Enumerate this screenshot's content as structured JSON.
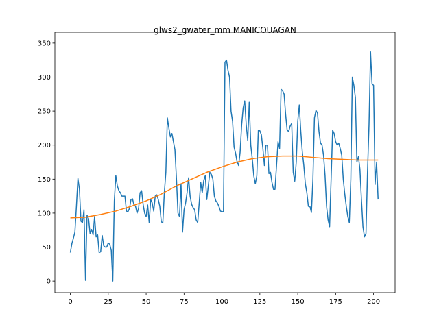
{
  "chart_data": {
    "type": "line",
    "title": "glws2_gwater_mm MANICOUAGAN",
    "xlim": [
      -10.2,
      214.2
    ],
    "ylim": [
      -17,
      366
    ],
    "xticks": [
      0,
      25,
      50,
      75,
      100,
      125,
      150,
      175,
      200
    ],
    "yticks": [
      0,
      50,
      100,
      150,
      200,
      250,
      300,
      350
    ],
    "series": [
      {
        "color": "#1f77b4",
        "x": [
          0,
          1,
          2,
          3,
          4,
          5,
          6,
          7,
          8,
          9,
          10,
          11,
          12,
          13,
          14,
          15,
          16,
          17,
          18,
          19,
          20,
          21,
          22,
          23,
          24,
          25,
          26,
          27,
          28,
          29,
          30,
          31,
          32,
          33,
          34,
          35,
          36,
          37,
          38,
          39,
          40,
          41,
          42,
          43,
          44,
          45,
          46,
          47,
          48,
          49,
          50,
          51,
          52,
          53,
          54,
          55,
          56,
          57,
          58,
          59,
          60,
          61,
          62,
          63,
          64,
          65,
          66,
          67,
          68,
          69,
          70,
          71,
          72,
          73,
          74,
          75,
          76,
          77,
          78,
          79,
          80,
          81,
          82,
          83,
          84,
          85,
          86,
          87,
          88,
          89,
          90,
          91,
          92,
          93,
          94,
          95,
          96,
          97,
          98,
          99,
          100,
          101,
          102,
          103,
          104,
          105,
          106,
          107,
          108,
          109,
          110,
          111,
          112,
          113,
          114,
          115,
          116,
          117,
          118,
          119,
          120,
          121,
          122,
          123,
          124,
          125,
          126,
          127,
          128,
          129,
          130,
          131,
          132,
          133,
          134,
          135,
          136,
          137,
          138,
          139,
          140,
          141,
          142,
          143,
          144,
          145,
          146,
          147,
          148,
          149,
          150,
          151,
          152,
          153,
          154,
          155,
          156,
          157,
          158,
          159,
          160,
          161,
          162,
          163,
          164,
          165,
          166,
          167,
          168,
          169,
          170,
          171,
          172,
          173,
          174,
          175,
          176,
          177,
          178,
          179,
          180,
          181,
          182,
          183,
          184,
          185,
          186,
          187,
          188,
          189,
          190,
          191,
          192,
          193,
          194,
          195,
          196,
          197,
          198,
          199,
          200,
          201,
          202,
          203
        ],
        "values": [
          42,
          55,
          63,
          72,
          110,
          151,
          135,
          88,
          86,
          105,
          1,
          97,
          92,
          70,
          76,
          68,
          95,
          65,
          68,
          42,
          43,
          67,
          52,
          50,
          50,
          56,
          54,
          45,
          0,
          118,
          155,
          140,
          133,
          130,
          125,
          125,
          125,
          103,
          102,
          107,
          120,
          121,
          112,
          110,
          100,
          107,
          130,
          133,
          113,
          100,
          95,
          112,
          86,
          120,
          115,
          103,
          125,
          127,
          120,
          110,
          87,
          86,
          130,
          160,
          240,
          225,
          212,
          217,
          205,
          193,
          150,
          100,
          95,
          143,
          72,
          105,
          115,
          130,
          152,
          125,
          113,
          108,
          105,
          90,
          86,
          115,
          145,
          130,
          148,
          155,
          120,
          140,
          160,
          157,
          150,
          125,
          118,
          115,
          110,
          103,
          102,
          102,
          322,
          325,
          310,
          300,
          250,
          235,
          197,
          188,
          175,
          170,
          190,
          230,
          255,
          265,
          230,
          207,
          263,
          200,
          180,
          155,
          143,
          155,
          222,
          221,
          215,
          195,
          170,
          200,
          200,
          158,
          160,
          145,
          135,
          135,
          170,
          205,
          195,
          282,
          280,
          275,
          245,
          222,
          220,
          228,
          232,
          160,
          147,
          175,
          235,
          259,
          220,
          190,
          170,
          143,
          130,
          110,
          110,
          101,
          150,
          240,
          251,
          247,
          220,
          203,
          200,
          185,
          155,
          110,
          90,
          80,
          150,
          222,
          217,
          205,
          200,
          203,
          195,
          185,
          150,
          128,
          110,
          95,
          86,
          150,
          300,
          288,
          270,
          175,
          183,
          165,
          120,
          80,
          65,
          70,
          160,
          230,
          337,
          290,
          288,
          142,
          175,
          120
        ]
      },
      {
        "color": "#ff7f0e",
        "x": [
          0,
          10,
          20,
          30,
          40,
          50,
          60,
          70,
          80,
          90,
          100,
          110,
          120,
          130,
          140,
          150,
          160,
          170,
          180,
          190,
          203
        ],
        "values": [
          93,
          94,
          98,
          103,
          110,
          118,
          128,
          140,
          150,
          160,
          168,
          175,
          180,
          183,
          184,
          184,
          182,
          180,
          179,
          178,
          178
        ]
      }
    ]
  }
}
